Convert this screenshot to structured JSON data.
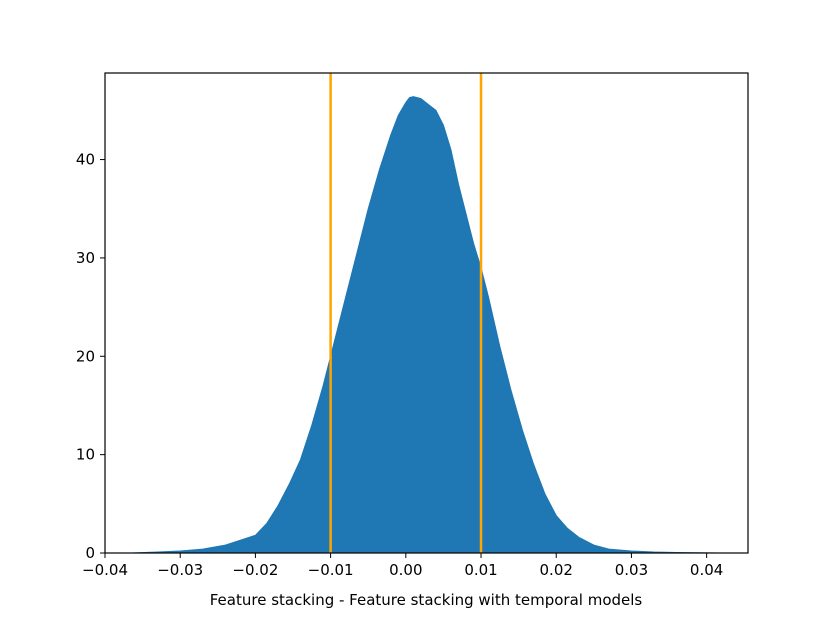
{
  "chart_data": {
    "type": "area",
    "title": "",
    "xlabel": "Feature stacking - Feature stacking with temporal models",
    "ylabel": "",
    "xlim": [
      -0.04,
      0.0455
    ],
    "ylim": [
      0,
      48.8
    ],
    "x_ticks": [
      {
        "value": -0.04,
        "label": "−0.04"
      },
      {
        "value": -0.03,
        "label": "−0.03"
      },
      {
        "value": -0.02,
        "label": "−0.02"
      },
      {
        "value": -0.01,
        "label": "−0.01"
      },
      {
        "value": 0.0,
        "label": "0.00"
      },
      {
        "value": 0.01,
        "label": "0.01"
      },
      {
        "value": 0.02,
        "label": "0.02"
      },
      {
        "value": 0.03,
        "label": "0.03"
      },
      {
        "value": 0.04,
        "label": "0.04"
      }
    ],
    "y_ticks": [
      {
        "value": 0,
        "label": "0"
      },
      {
        "value": 10,
        "label": "10"
      },
      {
        "value": 20,
        "label": "20"
      },
      {
        "value": 30,
        "label": "30"
      },
      {
        "value": 40,
        "label": "40"
      }
    ],
    "grid": false,
    "series": [
      {
        "color": "#1f77b4",
        "x": [
          -0.0365,
          -0.033,
          -0.03,
          -0.027,
          -0.024,
          -0.022,
          -0.02,
          -0.0185,
          -0.017,
          -0.0155,
          -0.014,
          -0.0125,
          -0.011,
          -0.0095,
          -0.008,
          -0.0065,
          -0.005,
          -0.0035,
          -0.002,
          -0.001,
          0.0,
          0.0005,
          0.001,
          0.002,
          0.003,
          0.004,
          0.005,
          0.006,
          0.007,
          0.008,
          0.009,
          0.01,
          0.011,
          0.0125,
          0.014,
          0.0155,
          0.017,
          0.0185,
          0.02,
          0.0215,
          0.023,
          0.025,
          0.027,
          0.03,
          0.033,
          0.036,
          0.039,
          0.0418
        ],
        "y": [
          0.0,
          0.1,
          0.2,
          0.4,
          0.8,
          1.3,
          1.8,
          3.0,
          4.8,
          7.0,
          9.5,
          13.0,
          17.0,
          21.5,
          26.0,
          30.5,
          35.0,
          39.0,
          42.5,
          44.5,
          45.8,
          46.3,
          46.4,
          46.2,
          45.6,
          45.0,
          43.5,
          41.0,
          37.5,
          34.5,
          31.5,
          29.0,
          26.0,
          21.0,
          16.5,
          12.5,
          9.0,
          6.0,
          3.8,
          2.5,
          1.6,
          0.8,
          0.4,
          0.2,
          0.1,
          0.05,
          0.02,
          0.0
        ]
      }
    ],
    "reference_lines": [
      {
        "x": -0.01,
        "color": "#ffa500"
      },
      {
        "x": 0.01,
        "color": "#ffa500"
      }
    ]
  }
}
